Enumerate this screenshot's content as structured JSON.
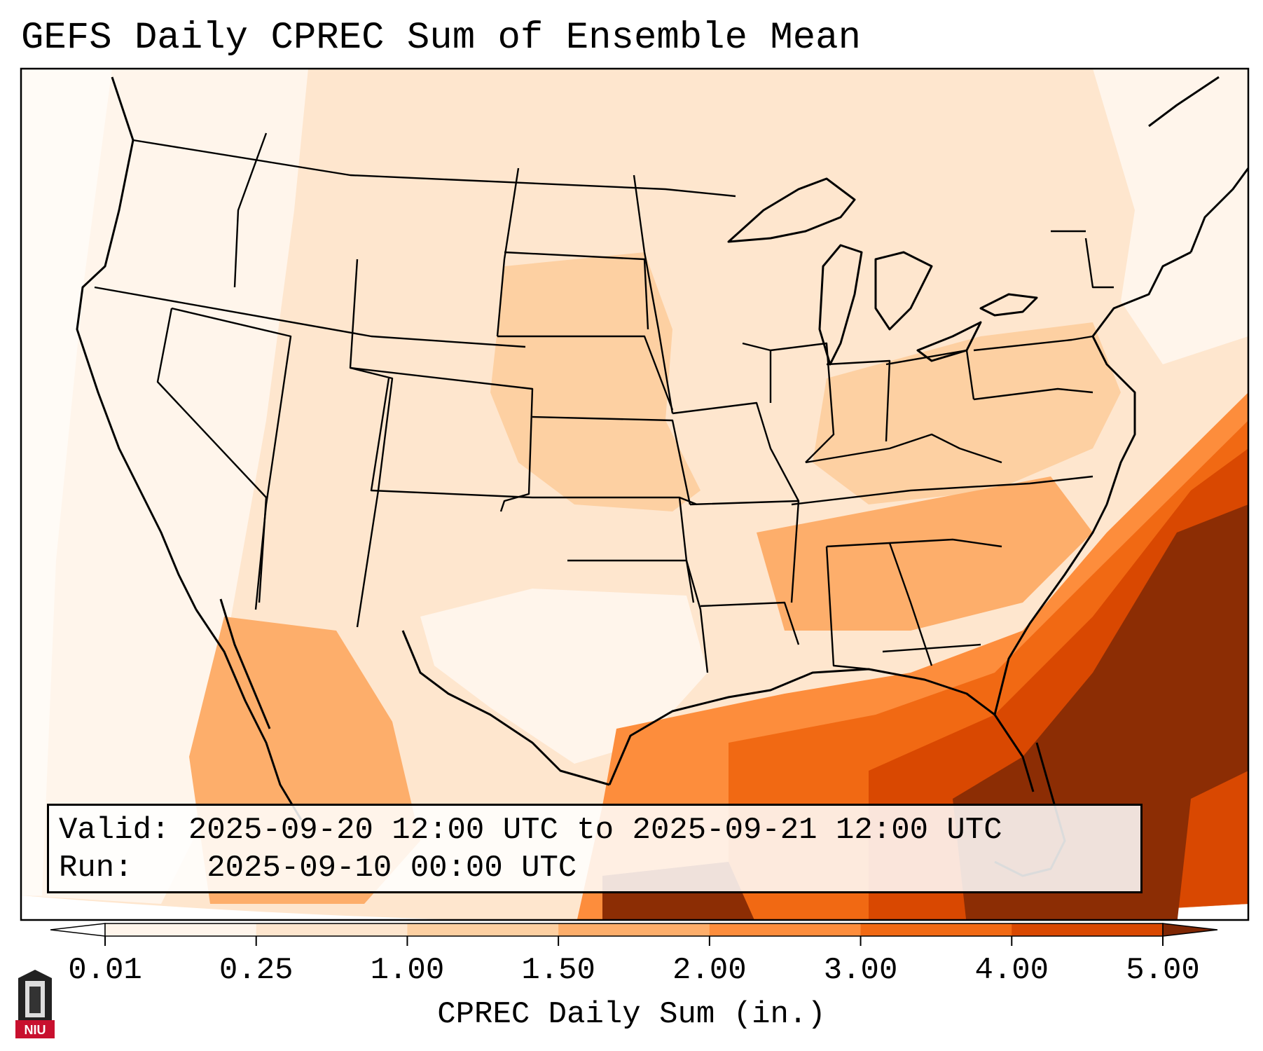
{
  "title": "GEFS Daily CPREC Sum of Ensemble Mean",
  "info": {
    "valid_label": "Valid:",
    "valid_value": "2025-09-20 12:00 UTC to 2025-09-21 12:00 UTC",
    "run_label": "Run:",
    "run_value": "2025-09-10 00:00 UTC"
  },
  "colorbar": {
    "label": "CPREC Daily Sum (in.)",
    "ticks": [
      "0.01",
      "0.25",
      "1.00",
      "1.50",
      "2.00",
      "3.00",
      "4.00",
      "5.00"
    ],
    "colors": [
      "#fff5eb",
      "#fee6ce",
      "#fdd0a2",
      "#fdae6b",
      "#fd8d3c",
      "#f16913",
      "#d94801",
      "#8c2d04"
    ],
    "under_color": "#ffffff",
    "over_color": "#7f2704"
  },
  "logo": {
    "text": "NIU",
    "colors": {
      "background": "#c8102e",
      "tower": "#333333"
    }
  }
}
